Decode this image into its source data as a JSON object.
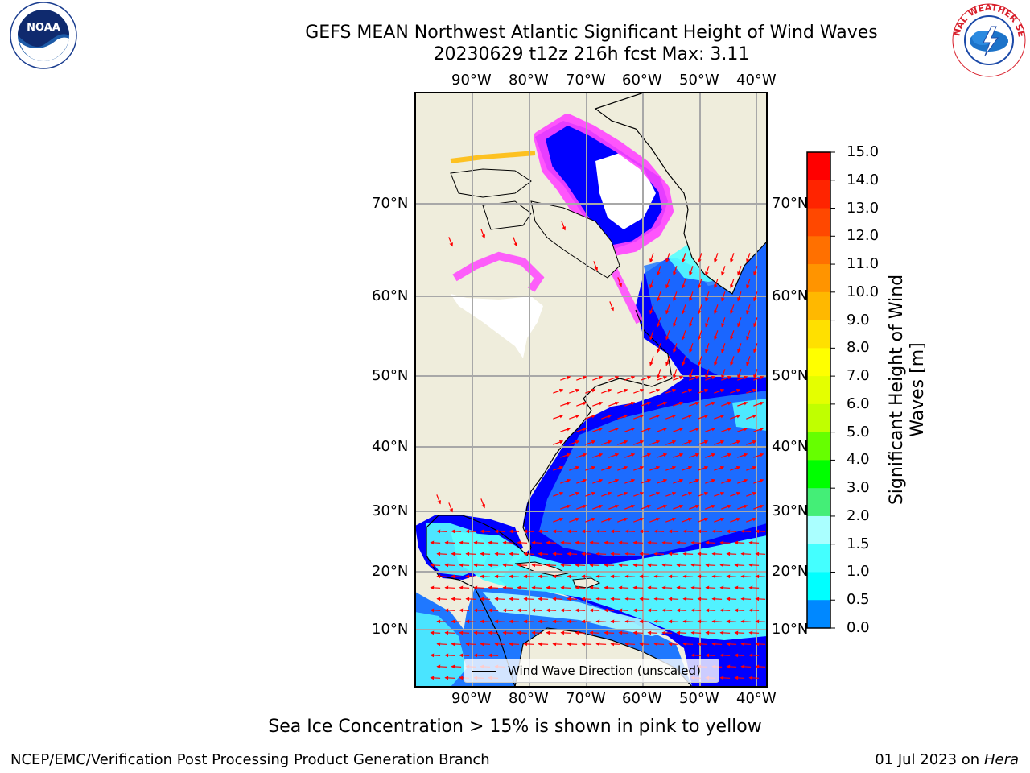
{
  "header": {
    "title_line1": "GEFS MEAN Northwest Atlantic Significant Height of Wind Waves",
    "title_line2": "20230629 t12z 216h fcst   Max: 3.11"
  },
  "logos": {
    "left": "NOAA",
    "left_ring_text": "NATIONAL OCEANIC AND ATMOSPHERIC ADMINISTRATION",
    "left_ring_bottom": "U.S. DEPARTMENT OF COMMERCE",
    "right_ring_text": "NATIONAL WEATHER SERVICE"
  },
  "axes": {
    "lon_labels": [
      "90°W",
      "80°W",
      "70°W",
      "60°W",
      "50°W",
      "40°W"
    ],
    "lat_labels": [
      "70°N",
      "60°N",
      "50°N",
      "40°N",
      "30°N",
      "20°N",
      "10°N"
    ]
  },
  "legend": {
    "label": "Wind Wave Direction (unscaled)"
  },
  "colorbar": {
    "label": "Significant Height of Wind Waves [m]",
    "ticks": [
      "15.0",
      "14.0",
      "13.0",
      "12.0",
      "11.0",
      "10.0",
      "9.0",
      "8.0",
      "7.0",
      "6.0",
      "5.0",
      "4.0",
      "3.0",
      "2.0",
      "1.5",
      "1.0",
      "0.5",
      "0.0"
    ],
    "colors": [
      "#ff0000",
      "#ff2400",
      "#ff4800",
      "#ff7000",
      "#ff9400",
      "#ffb800",
      "#ffe000",
      "#ffff00",
      "#e4ff00",
      "#c0ff00",
      "#66ff00",
      "#00ff00",
      "#44ee77",
      "#aaffff",
      "#44ffff",
      "#00ffff",
      "#0088ff",
      "#0000ff"
    ]
  },
  "colors": {
    "land": "#efeddc",
    "ocean_low": "#0000ff",
    "ocean_mid": "#1f78ff",
    "ocean_high": "#55ffff",
    "ice": "#ff44ff",
    "arrows": "#ff0000"
  },
  "note": "Sea Ice Concentration > 15% is shown in pink to yellow",
  "footer": {
    "left": "NCEP/EMC/Verification Post Processing Product Generation Branch",
    "right_date": "01 Jul 2023 on",
    "right_host": "Hera"
  }
}
